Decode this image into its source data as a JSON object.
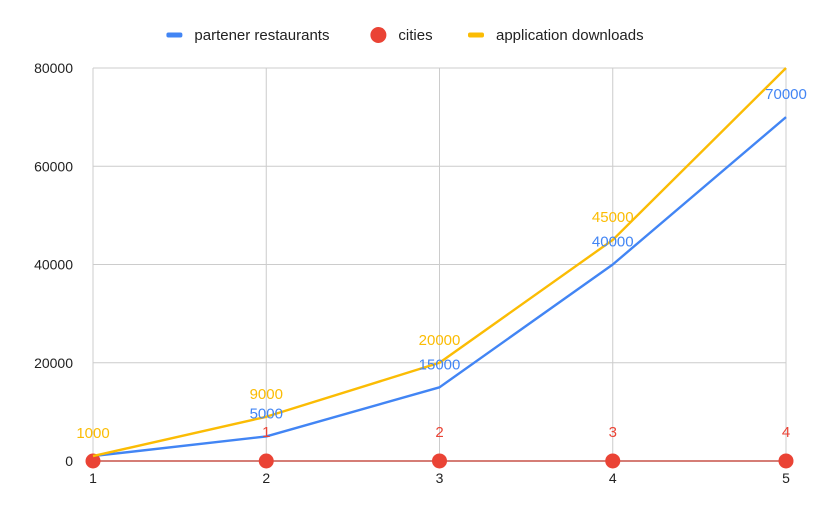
{
  "chart_data": {
    "type": "line",
    "title": "",
    "xlabel": "",
    "ylabel": "",
    "x": [
      1,
      2,
      3,
      4,
      5
    ],
    "x_tick_labels": [
      "1",
      "2",
      "3",
      "4",
      "5"
    ],
    "ylim": [
      0,
      80000
    ],
    "y_ticks": [
      0,
      20000,
      40000,
      60000,
      80000
    ],
    "y_tick_labels": [
      "0",
      "20000",
      "40000",
      "60000",
      "80000"
    ],
    "grid": true,
    "legend_position": "top",
    "series": [
      {
        "name": "partener restaurants",
        "marker": "line",
        "color": "#4285F4",
        "values": [
          1000,
          5000,
          15000,
          40000,
          70000
        ],
        "data_labels": [
          "",
          "5000",
          "15000",
          "40000",
          "70000"
        ]
      },
      {
        "name": "cities",
        "marker": "point",
        "color": "#EA4335",
        "values": [
          0,
          1,
          2,
          3,
          4
        ],
        "data_labels": [
          "",
          "1",
          "2",
          "3",
          "4"
        ]
      },
      {
        "name": "application downloads",
        "marker": "line",
        "color": "#FBBC04",
        "values": [
          1000,
          9000,
          20000,
          45000,
          80000
        ],
        "data_labels": [
          "1000",
          "9000",
          "20000",
          "45000",
          ""
        ]
      }
    ]
  }
}
